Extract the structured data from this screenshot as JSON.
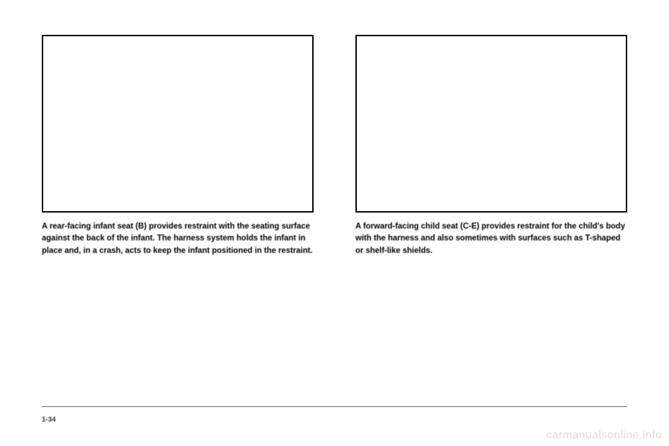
{
  "left_column": {
    "caption": "A rear-facing infant seat (B) provides restraint with the seating surface against the back of the infant. The harness system holds the infant in place and, in a crash, acts to keep the infant positioned in the restraint."
  },
  "right_column": {
    "caption": "A forward-facing child seat (C-E) provides restraint for the child's body with the harness and also sometimes with surfaces such as T-shaped or shelf-like shields."
  },
  "footer": {
    "page_number": "1-34"
  },
  "watermark": {
    "text": "carmanualsonline.info"
  }
}
